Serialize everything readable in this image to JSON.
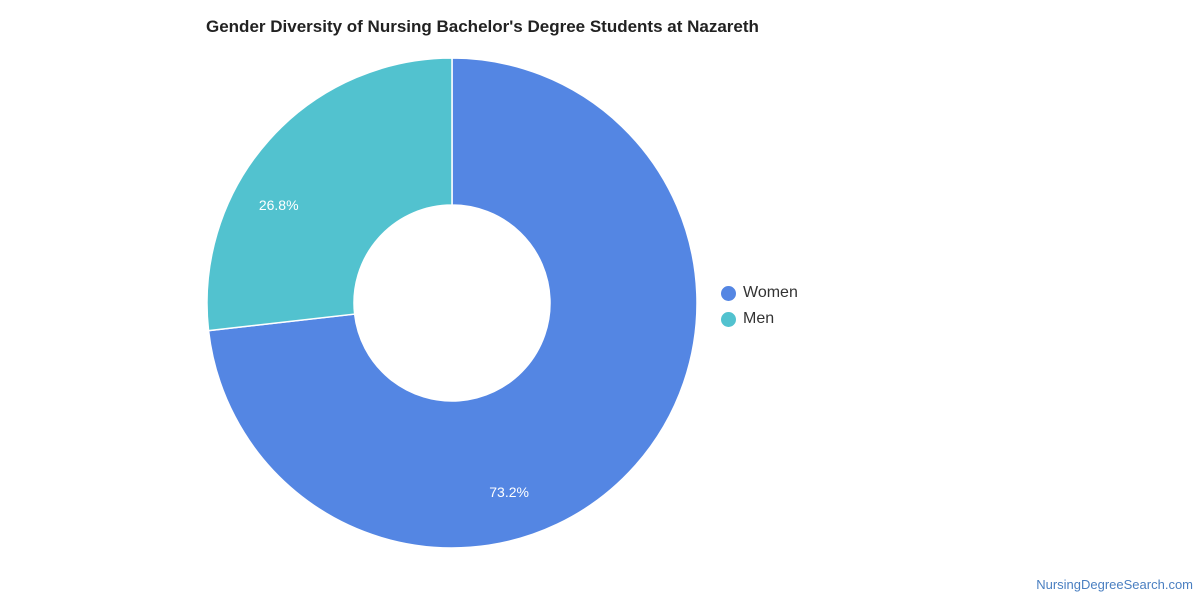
{
  "chart_data": {
    "type": "pie",
    "donut": true,
    "title": "Gender Diversity of Nursing Bachelor's Degree Students at Nazareth",
    "categories": [
      "Women",
      "Men"
    ],
    "values": [
      73.2,
      26.8
    ],
    "labels": [
      "73.2%",
      "26.8%"
    ],
    "colors": [
      "#5486e3",
      "#52c2cf"
    ],
    "legend_position": "right"
  },
  "legend": {
    "items": [
      {
        "label": "Women",
        "color": "#5486e3"
      },
      {
        "label": "Men",
        "color": "#52c2cf"
      }
    ]
  },
  "footer": {
    "credit": "NursingDegreeSearch.com"
  }
}
